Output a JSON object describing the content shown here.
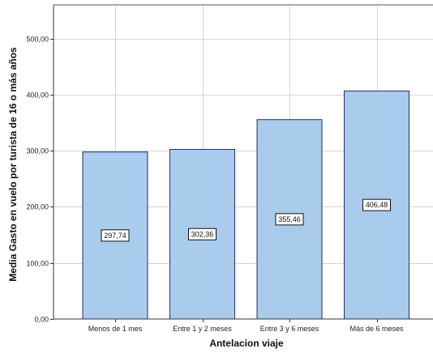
{
  "chart_data": {
    "type": "bar",
    "title": "",
    "xlabel": "Antelacion viaje",
    "ylabel": "Media Gasto en vuelo por turista de 16 o más años",
    "categories": [
      "Menos de 1 mes",
      "Entre 1 y 2 meses",
      "Entre 3 y 6 meses",
      "Más de 6 meses"
    ],
    "values": [
      297.74,
      302.36,
      355.46,
      406.48
    ],
    "value_labels": [
      "297,74",
      "302,36",
      "355,46",
      "406,48"
    ],
    "ylim": [
      0,
      560
    ],
    "yticks": [
      0,
      100,
      200,
      300,
      400,
      500
    ],
    "ytick_labels": [
      "0,00",
      "100,00",
      "200,00",
      "300,00",
      "400,00",
      "500,00"
    ],
    "grid": true,
    "bar_color": "#a9cbec",
    "bar_edge_color": "#2b2b6b"
  }
}
